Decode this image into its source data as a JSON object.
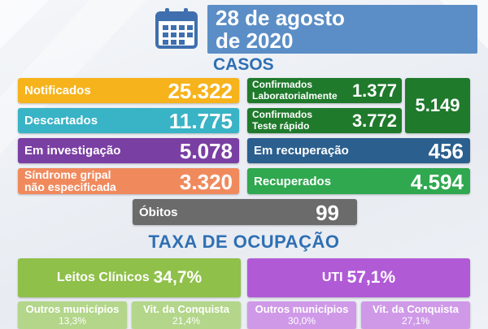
{
  "header": {
    "date_line1": "28 de agosto",
    "date_line2": "de 2020"
  },
  "casos": {
    "title": "CASOS",
    "notificados": {
      "label": "Notificados",
      "value": "25.322"
    },
    "descartados": {
      "label": "Descartados",
      "value": "11.775"
    },
    "em_investigacao": {
      "label": "Em investigação",
      "value": "5.078"
    },
    "sindrome": {
      "label_line1": "Síndrome gripal",
      "label_line2": "não especificada",
      "value": "3.320"
    },
    "confirmados_lab": {
      "label_line1": "Confirmados",
      "label_line2": "Laboratorialmente",
      "value": "1.377"
    },
    "confirmados_teste": {
      "label_line1": "Confirmados",
      "label_line2": "Teste rápido",
      "value": "3.772"
    },
    "confirmados_total": "5.149",
    "em_recuperacao": {
      "label": "Em recuperação",
      "value": "456"
    },
    "recuperados": {
      "label": "Recuperados",
      "value": "4.594"
    },
    "obitos": {
      "label": "Óbitos",
      "value": "99"
    }
  },
  "ocupacao": {
    "title": "TAXA DE OCUPAÇÃO",
    "leitos": {
      "label": "Leitos Clínicos",
      "value": "34,7%"
    },
    "uti": {
      "label": "UTI",
      "value": "57,1%"
    },
    "leitos_outros": {
      "label": "Outros municípios",
      "value": "13,3%"
    },
    "leitos_vit": {
      "label": "Vit. da Conquista",
      "value": "21,4%"
    },
    "uti_outros": {
      "label": "Outros municípios",
      "value": "30,0%"
    },
    "uti_vit": {
      "label": "Vit. da Conquista",
      "value": "27,1%"
    }
  },
  "colors": {
    "orange": "#f6b31c",
    "teal": "#39b3c6",
    "purple": "#7a3fa3",
    "salmon": "#f08a5d",
    "dark_green": "#1f7a2c",
    "navy": "#2b5f8e",
    "green": "#2fa84f",
    "gray": "#6b6b6b",
    "lime": "#8fc04a",
    "violet": "#b15ad6",
    "header_blue": "#5b8ec6"
  },
  "icons": {
    "calendar": "calendar-icon"
  }
}
